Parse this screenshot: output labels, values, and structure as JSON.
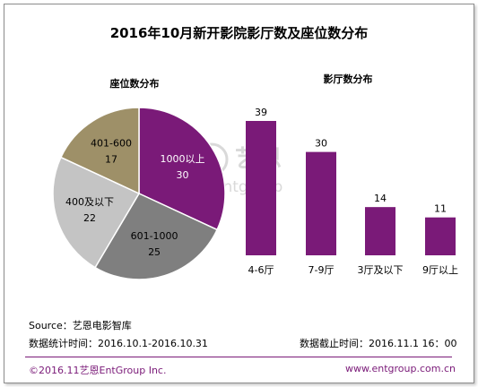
{
  "title": "2016年10月新开影院影厅数及座位数分布",
  "watermark": {
    "logo_text": "艺恩",
    "logo_subtext": "entgroup"
  },
  "source": "Source：艺恩电影智库",
  "stat_period": "数据统计时间：2016.10.1-2016.10.31",
  "cutoff_time": "数据截止时间：2016.11.1  16：00",
  "copyright": "©2016.11艺恩EntGroup Inc.",
  "website": "www.entgroup.com.cn",
  "colors": {
    "pie_purple": "#7a1a78",
    "pie_gray_dark": "#7f7f7f",
    "pie_gray_light": "#c4c4c4",
    "pie_tan": "#9e9068",
    "bar": "#7a1a78",
    "footer": "#7a1a78"
  },
  "chart_data": [
    {
      "type": "pie",
      "title": "座位数分布",
      "labels": [
        "1000以上",
        "601-1000",
        "400及以下",
        "401-600"
      ],
      "values": [
        30,
        25,
        22,
        17
      ]
    },
    {
      "type": "bar",
      "title": "影厅数分布",
      "categories": [
        "4-6厅",
        "7-9厅",
        "3厅及以下",
        "9厅以上"
      ],
      "values": [
        39,
        30,
        14,
        11
      ],
      "ylim": [
        0,
        39
      ]
    }
  ]
}
